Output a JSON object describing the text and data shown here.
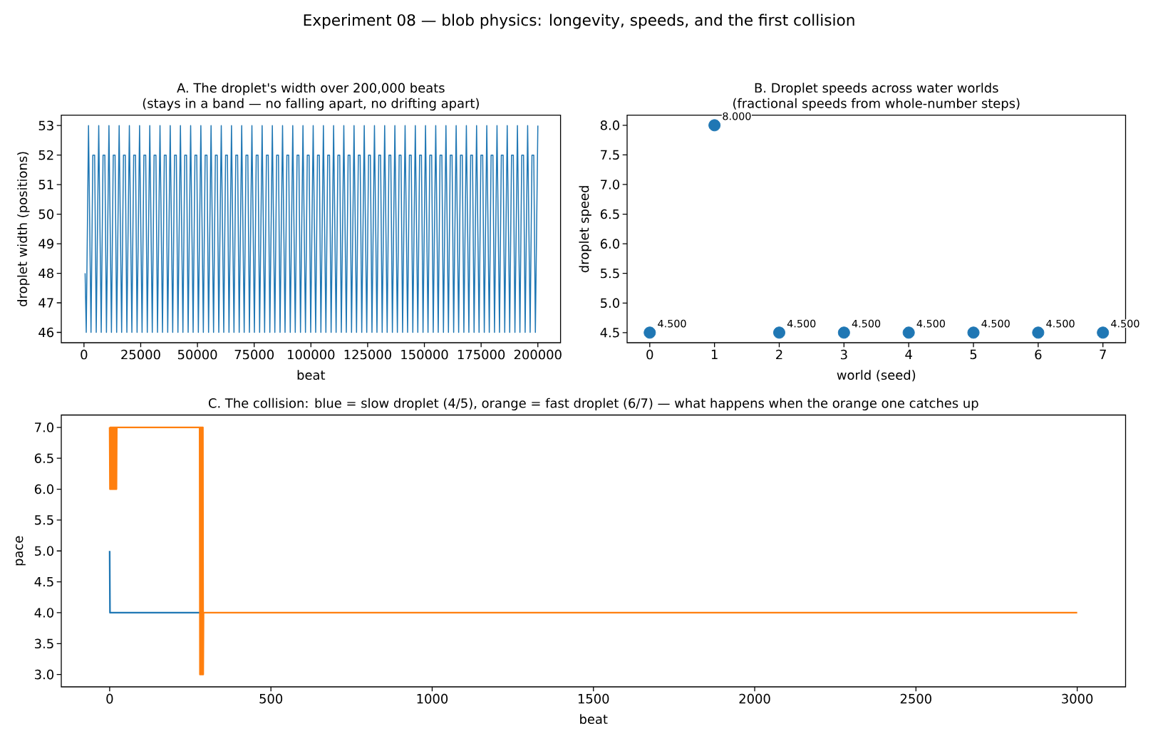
{
  "chart_data": [
    {
      "type": "other",
      "title": "Experiment 08 — blob physics: longevity, speeds, and the first collision"
    },
    {
      "type": "line",
      "title": "A. The droplet's width over 200,000 beats",
      "subtitle": "(stays in a band — no falling apart, no drifting apart)",
      "xlabel": "beat",
      "ylabel": "droplet width (positions)",
      "color": "#1f77b4",
      "x": [
        500,
        1000,
        2000,
        3100,
        3900,
        4700,
        5400,
        6500,
        7600,
        8400,
        9200,
        9900,
        11000,
        12100,
        12900,
        13700,
        14400,
        15500,
        16600,
        17400,
        18200,
        18900,
        20000,
        21100,
        21900,
        22700,
        23400,
        24500,
        25600,
        26400,
        27200,
        27900,
        29000,
        30100,
        30900,
        31700,
        32400,
        33500,
        34600,
        35400,
        36200,
        36900,
        38000,
        39100,
        39900,
        40700,
        41400,
        42500,
        43600,
        44400,
        45200,
        45900,
        47000,
        48100,
        48900,
        49700,
        50400,
        51500,
        52600,
        53400,
        54200,
        54900,
        56000,
        57100,
        57900,
        58700,
        59400,
        60500,
        61600,
        62400,
        63200,
        63900,
        65000,
        66100,
        66900,
        67700,
        68400,
        69500,
        70600,
        71400,
        72200,
        72900,
        74000,
        75100,
        75900,
        76700,
        77400,
        78500,
        79600,
        80400,
        81200,
        81900,
        83000,
        84100,
        84900,
        85700,
        86400,
        87500,
        88600,
        89400,
        90200,
        90900,
        92000,
        93100,
        93900,
        94700,
        95400,
        96500,
        97600,
        98400,
        99200,
        99900,
        101000,
        102100,
        102900,
        103700,
        104400,
        105500,
        106600,
        107400,
        108200,
        108900,
        110000,
        111100,
        111900,
        112700,
        113400,
        114500,
        115600,
        116400,
        117200,
        117900,
        119000,
        120100,
        120900,
        121700,
        122400,
        123500,
        124600,
        125400,
        126200,
        126900,
        128000,
        129100,
        129900,
        130700,
        131400,
        132500,
        133600,
        134400,
        135200,
        135900,
        137000,
        138100,
        138900,
        139700,
        140400,
        141500,
        142600,
        143400,
        144200,
        144900,
        146000,
        147100,
        147900,
        148700,
        149400,
        150500,
        151600,
        152400,
        153200,
        153900,
        155000,
        156100,
        156900,
        157700,
        158400,
        159500,
        160600,
        161400,
        162200,
        162900,
        164000,
        165100,
        165900,
        166700,
        167400,
        168500,
        169600,
        170400,
        171200,
        171900,
        173000,
        174100,
        174900,
        175700,
        176400,
        177500,
        178600,
        179400,
        180200,
        180900,
        182000,
        183100,
        183900,
        184700,
        185400,
        186500,
        187600,
        188400,
        189200,
        189900,
        191000,
        192100,
        192900,
        193700,
        194400,
        195500,
        196600,
        197400,
        198200,
        198900,
        200000
      ],
      "values": [
        48,
        46,
        53,
        46,
        52,
        52,
        46,
        53,
        46,
        52,
        52,
        46,
        53,
        46,
        52,
        52,
        46,
        53,
        46,
        52,
        52,
        46,
        53,
        46,
        52,
        52,
        46,
        53,
        46,
        52,
        52,
        46,
        53,
        46,
        52,
        52,
        46,
        53,
        46,
        52,
        52,
        46,
        53,
        46,
        52,
        52,
        46,
        53,
        46,
        52,
        52,
        46,
        53,
        46,
        52,
        52,
        46,
        53,
        46,
        52,
        52,
        46,
        53,
        46,
        52,
        52,
        46,
        53,
        46,
        52,
        52,
        46,
        53,
        46,
        52,
        52,
        46,
        53,
        46,
        52,
        52,
        46,
        53,
        46,
        52,
        52,
        46,
        53,
        46,
        52,
        52,
        46,
        53,
        46,
        52,
        52,
        46,
        53,
        46,
        52,
        52,
        46,
        53,
        46,
        52,
        52,
        46,
        53,
        46,
        52,
        52,
        46,
        53,
        46,
        52,
        52,
        46,
        53,
        46,
        52,
        52,
        46,
        53,
        46,
        52,
        52,
        46,
        53,
        46,
        52,
        52,
        46,
        53,
        46,
        52,
        52,
        46,
        53,
        46,
        52,
        52,
        46,
        53,
        46,
        52,
        52,
        46,
        53,
        46,
        52,
        52,
        46,
        53,
        46,
        52,
        52,
        46,
        53,
        46,
        52,
        52,
        46,
        53,
        46,
        52,
        52,
        46,
        53,
        46,
        52,
        52,
        46,
        53,
        46,
        52,
        52,
        46,
        53,
        46,
        52,
        52,
        46,
        53,
        46,
        52,
        52,
        46,
        53,
        46,
        52,
        52,
        46,
        53,
        46,
        52,
        52,
        46,
        53,
        46,
        52,
        52,
        46,
        53,
        46,
        52,
        52,
        46,
        53,
        46,
        52,
        52,
        46,
        53,
        46,
        52,
        52,
        46,
        53,
        46,
        52,
        52,
        46,
        53
      ],
      "xlim": [
        -10000,
        210000
      ],
      "ylim": [
        45.65,
        53.35
      ],
      "xticks": [
        0,
        25000,
        50000,
        75000,
        100000,
        125000,
        150000,
        175000,
        200000
      ],
      "yticks": [
        46,
        47,
        48,
        49,
        50,
        51,
        52,
        53
      ]
    },
    {
      "type": "scatter",
      "title": "B. Droplet speeds across water worlds",
      "subtitle": "(fractional speeds from whole-number steps)",
      "xlabel": "world (seed)",
      "ylabel": "droplet speed",
      "color": "#1f77b4",
      "marker": "circle",
      "x": [
        0,
        1,
        2,
        3,
        4,
        5,
        6,
        7
      ],
      "values": [
        4.5,
        8.0,
        4.5,
        4.5,
        4.5,
        4.5,
        4.5,
        4.5
      ],
      "value_labels": [
        "4.500",
        "8.000",
        "4.500",
        "4.500",
        "4.500",
        "4.500",
        "4.500",
        "4.500"
      ],
      "xlim": [
        -0.35,
        7.35
      ],
      "ylim": [
        4.33,
        8.17
      ],
      "xticks": [
        0,
        1,
        2,
        3,
        4,
        5,
        6,
        7
      ],
      "yticks": [
        4.5,
        {
          "value": 5,
          "label": "5.0"
        },
        5.5,
        {
          "value": 6,
          "label": "6.0"
        },
        6.5,
        {
          "value": 7,
          "label": "7.0"
        },
        7.5,
        {
          "value": 8,
          "label": "8.0"
        }
      ]
    },
    {
      "type": "line",
      "title": "C. The collision: blue = slow droplet (4/5), orange = fast droplet (6/7) — what happens when the orange one catches up",
      "xlabel": "beat",
      "ylabel": "pace",
      "series": [
        {
          "color": "#1f77b4",
          "x": [
            0,
            1,
            280
          ],
          "values": [
            5,
            4,
            4
          ]
        },
        {
          "color": "#ff7f0e",
          "x": [
            0,
            1,
            2,
            3,
            4,
            5,
            6,
            7,
            8,
            9,
            10,
            11,
            12,
            13,
            14,
            15,
            16,
            17,
            18,
            19,
            20,
            21,
            22,
            279,
            280,
            281,
            282,
            283,
            284,
            285,
            286,
            287,
            288,
            289,
            290,
            291,
            3000
          ],
          "values": [
            7,
            6,
            7,
            6,
            7,
            6,
            7,
            6,
            7,
            6,
            7,
            6,
            7,
            6,
            7,
            6,
            7,
            6,
            7,
            6,
            7,
            6,
            7,
            7,
            3,
            7,
            3,
            7,
            3,
            7,
            3,
            7,
            3,
            7,
            3,
            4,
            4
          ]
        }
      ],
      "xlim": [
        -150,
        3150
      ],
      "ylim": [
        2.8,
        7.2
      ],
      "xticks": [
        0,
        500,
        1000,
        1500,
        2000,
        2500,
        3000
      ],
      "yticks": [
        {
          "value": 3,
          "label": "3.0"
        },
        3.5,
        {
          "value": 4,
          "label": "4.0"
        },
        4.5,
        {
          "value": 5,
          "label": "5.0"
        },
        5.5,
        {
          "value": 6,
          "label": "6.0"
        },
        6.5,
        {
          "value": 7,
          "label": "7.0"
        }
      ]
    }
  ]
}
